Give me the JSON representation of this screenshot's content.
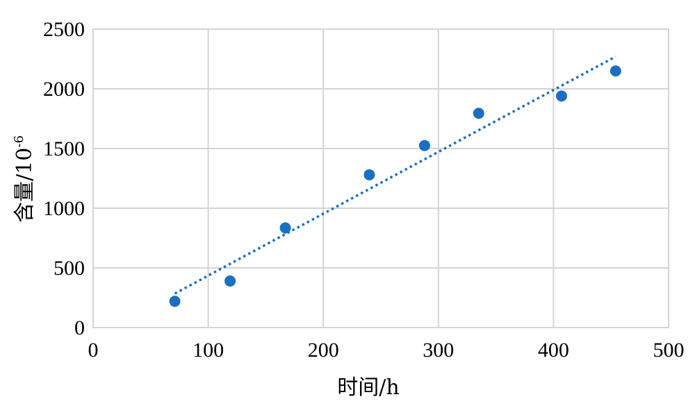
{
  "chart_data": {
    "type": "scatter",
    "xlabel": "时间/h",
    "ylabel_main": "含量/10",
    "ylabel_sup": "-6",
    "xlim": [
      0,
      500
    ],
    "ylim": [
      0,
      2500
    ],
    "xticks": [
      0,
      100,
      200,
      300,
      400,
      500
    ],
    "yticks": [
      0,
      500,
      1000,
      1500,
      2000,
      2500
    ],
    "grid": true,
    "series": [
      {
        "x": [
          71,
          119,
          167,
          240,
          288,
          335,
          407,
          454
        ],
        "y": [
          220,
          390,
          835,
          1280,
          1525,
          1795,
          1940,
          2150
        ]
      }
    ],
    "trendline": {
      "style": "dotted",
      "x": [
        71,
        454
      ],
      "y": [
        285,
        2270
      ]
    },
    "colors": {
      "marker": "#1a6fc2",
      "grid": "#d4d4d4"
    }
  }
}
